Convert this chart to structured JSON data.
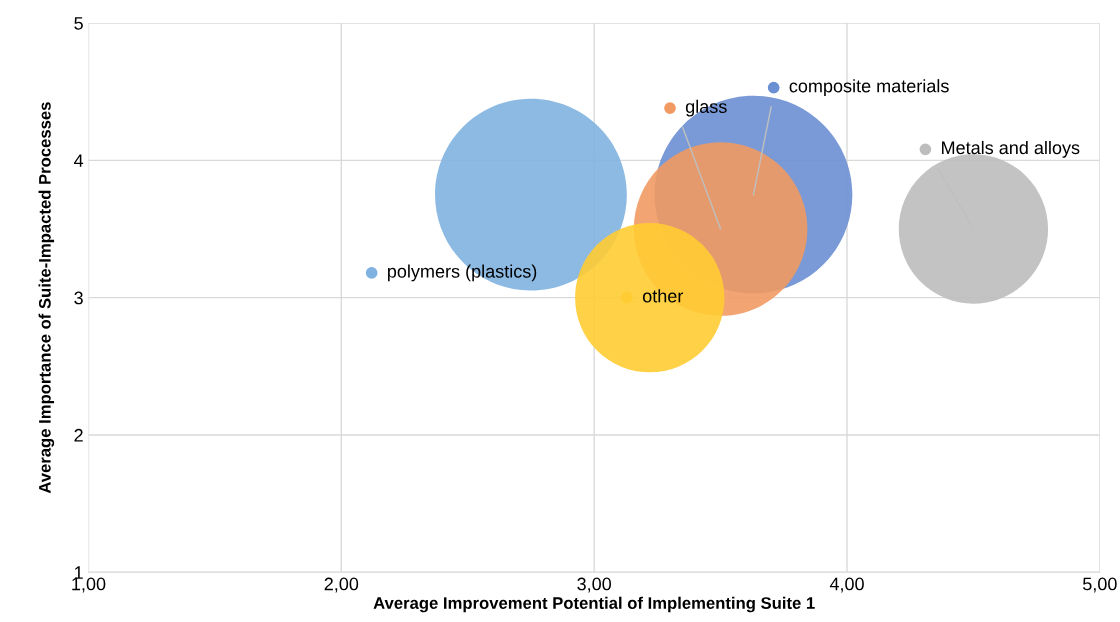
{
  "chart_data": {
    "type": "bubble",
    "xlabel": "Average Improvement Potential of Implementing Suite 1",
    "ylabel": "Average Importance of Suite-Impacted Processes",
    "series": [
      {
        "name": "polymers (plastics)",
        "color": "#7fb2e0",
        "x": [
          2.75
        ],
        "values": [
          3.75
        ],
        "sizes": [
          0.94
        ]
      },
      {
        "name": "composite materials",
        "color": "#6b8fd3",
        "x": [
          3.63
        ],
        "values": [
          3.75
        ],
        "sizes": [
          1
        ]
      },
      {
        "name": "glass",
        "color": "#f19a63",
        "x": [
          3.5
        ],
        "values": [
          3.5
        ],
        "sizes": [
          0.77
        ]
      },
      {
        "name": "other",
        "color": "#ffcc33",
        "x": [
          3.22
        ],
        "values": [
          3.0
        ],
        "sizes": [
          0.57
        ]
      },
      {
        "name": "Metals and alloys",
        "color": "#bdbdbd",
        "x": [
          4.5
        ],
        "values": [
          3.5
        ],
        "sizes": [
          0.57
        ]
      }
    ],
    "xlim": [
      1,
      5
    ],
    "xticks": [
      {
        "value": 1,
        "label": "1,00"
      },
      {
        "value": 2,
        "label": "2,00"
      },
      {
        "value": 3,
        "label": "3,00"
      },
      {
        "value": 4,
        "label": "4,00"
      },
      {
        "value": 5,
        "label": "5,00"
      }
    ],
    "ylim": [
      1,
      5
    ],
    "yticks": [
      1,
      2,
      3,
      4,
      5
    ],
    "grid": true,
    "legend": "top"
  }
}
